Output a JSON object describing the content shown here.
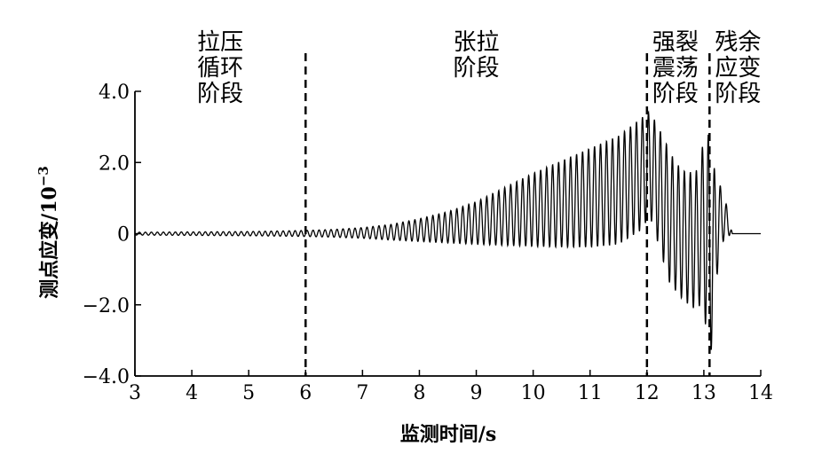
{
  "chart_data": {
    "type": "line",
    "xlabel": "监测时间/s",
    "ylabel": "测点应变/10",
    "ylabel_exponent": "−3",
    "xlim": [
      3,
      14
    ],
    "ylim": [
      -4.0,
      4.0
    ],
    "x_ticks": [
      "3",
      "4",
      "5",
      "6",
      "7",
      "8",
      "9",
      "10",
      "11",
      "12",
      "13",
      "14"
    ],
    "y_ticks": [
      "−4.0",
      "−2.0",
      "0",
      "2.0",
      "4.0"
    ],
    "grid": false,
    "phase_boundaries": [
      6.0,
      12.0,
      13.1
    ],
    "phases": [
      {
        "lines": [
          "拉压",
          "循环",
          "阶段"
        ],
        "x_center": 4.5
      },
      {
        "lines": [
          "张拉",
          "阶段"
        ],
        "x_center": 9.0
      },
      {
        "lines": [
          "强裂",
          "震荡",
          "阶段"
        ],
        "x_center": 12.5
      },
      {
        "lines": [
          "残余",
          "应变",
          "阶段"
        ],
        "x_center": 13.6
      }
    ],
    "series": [
      {
        "envelope_max": [
          [
            3.0,
            0.04
          ],
          [
            4.0,
            0.05
          ],
          [
            5.0,
            0.06
          ],
          [
            6.0,
            0.09
          ],
          [
            6.5,
            0.12
          ],
          [
            7.0,
            0.17
          ],
          [
            7.5,
            0.26
          ],
          [
            8.0,
            0.42
          ],
          [
            8.5,
            0.62
          ],
          [
            9.0,
            0.9
          ],
          [
            9.5,
            1.3
          ],
          [
            10.0,
            1.7
          ],
          [
            10.5,
            2.05
          ],
          [
            11.0,
            2.4
          ],
          [
            11.5,
            2.75
          ],
          [
            11.9,
            3.25
          ],
          [
            12.05,
            3.45
          ],
          [
            12.2,
            3.0
          ],
          [
            12.5,
            2.0
          ],
          [
            12.7,
            1.7
          ],
          [
            12.9,
            1.8
          ],
          [
            13.05,
            3.1
          ],
          [
            13.15,
            2.0
          ],
          [
            13.3,
            1.3
          ],
          [
            13.4,
            0.8
          ],
          [
            13.5,
            0.0
          ],
          [
            14.0,
            0.0
          ]
        ],
        "envelope_min": [
          [
            3.0,
            -0.04
          ],
          [
            4.0,
            -0.05
          ],
          [
            5.0,
            -0.06
          ],
          [
            6.0,
            -0.08
          ],
          [
            6.5,
            -0.1
          ],
          [
            7.0,
            -0.13
          ],
          [
            7.5,
            -0.18
          ],
          [
            8.0,
            -0.22
          ],
          [
            8.5,
            -0.26
          ],
          [
            9.0,
            -0.3
          ],
          [
            9.5,
            -0.33
          ],
          [
            10.0,
            -0.36
          ],
          [
            10.5,
            -0.38
          ],
          [
            11.0,
            -0.38
          ],
          [
            11.5,
            -0.3
          ],
          [
            11.9,
            0.1
          ],
          [
            12.05,
            0.5
          ],
          [
            12.2,
            -0.3
          ],
          [
            12.4,
            -1.4
          ],
          [
            12.6,
            -1.8
          ],
          [
            12.8,
            -2.1
          ],
          [
            13.0,
            -2.0
          ],
          [
            13.1,
            -4.0
          ],
          [
            13.2,
            -1.6
          ],
          [
            13.3,
            -0.3
          ],
          [
            13.4,
            -0.1
          ],
          [
            13.5,
            0.0
          ],
          [
            14.0,
            0.0
          ]
        ],
        "oscillation_hz": 9.5,
        "residual": 0.0
      }
    ]
  }
}
